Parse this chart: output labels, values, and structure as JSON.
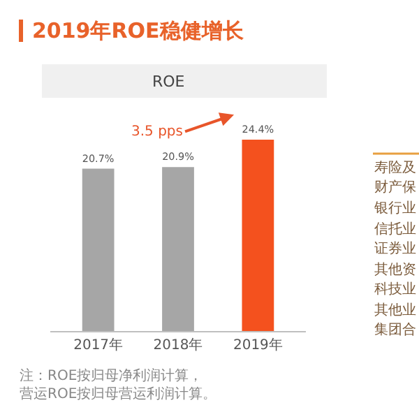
{
  "chart_data": {
    "type": "bar",
    "title": "2019年ROE稳健增长",
    "subtitle": "ROE",
    "categories": [
      "2017年",
      "2018年",
      "2019年"
    ],
    "values": [
      20.7,
      20.9,
      24.4
    ],
    "colors": [
      "#a6a6a6",
      "#a6a6a6",
      "#f4511e"
    ],
    "value_labels": [
      "20.7%",
      "20.9%",
      "24.4%"
    ],
    "annotations": [
      "3.5 pps",
      "注：ROE按归母净利润计算，营运ROE按归母营运利润计算。",
      "寿险及",
      "财产保",
      "银行业",
      "信托业",
      "证券业",
      "其他资",
      "科技业",
      "其他业",
      "集团合"
    ],
    "legend": false
  }
}
